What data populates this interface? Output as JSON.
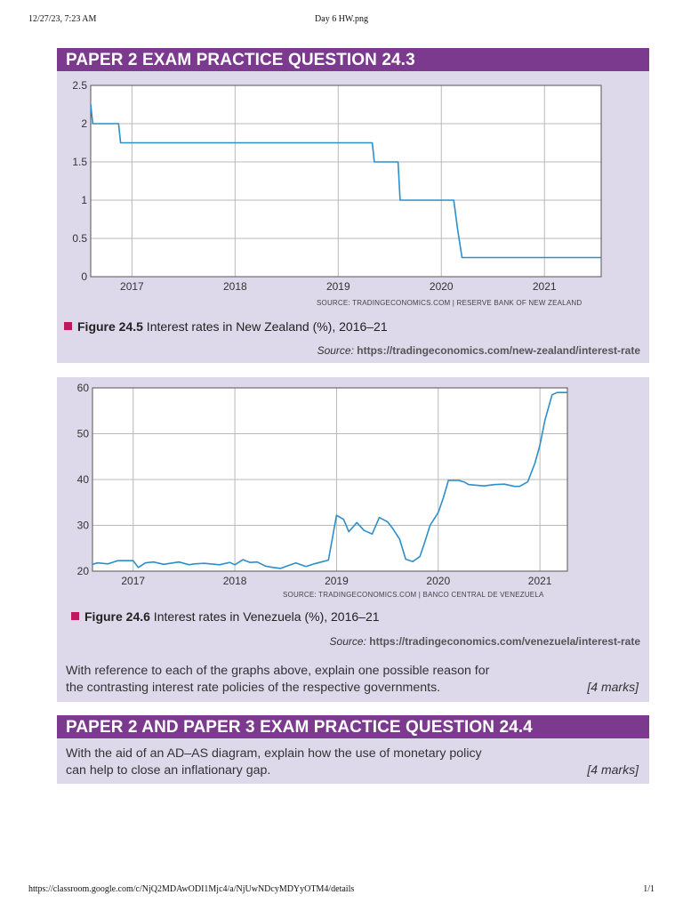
{
  "print_header": {
    "datetime": "12/27/23, 7:23 AM",
    "filename": "Day 6 HW.png"
  },
  "print_footer": {
    "url": "https://classroom.google.com/c/NjQ2MDAwODI1Mjc4/a/NjUwNDcyMDYyOTM4/details",
    "page": "1/1"
  },
  "colors": {
    "header_bg": "#7c3a8f",
    "card_bg": "#ddd8ea",
    "line": "#2c8fc9",
    "bullet": "#c0185c"
  },
  "question_24_3": {
    "title": "PAPER 2 EXAM PRACTICE QUESTION 24.3",
    "figure_1": {
      "source_line": "SOURCE: TRADINGECONOMICS.COM | RESERVE BANK OF NEW ZEALAND",
      "caption_label": "Figure 24.5",
      "caption_text": " Interest rates in New Zealand (%), 2016–21",
      "source_label": "Source:",
      "source_url": "https://tradingeconomics.com/new-zealand/interest-rate"
    },
    "figure_2": {
      "source_line": "SOURCE: TRADINGECONOMICS.COM | BANCO CENTRAL DE VENEZUELA",
      "caption_label": "Figure 24.6",
      "caption_text": " Interest rates in Venezuela (%), 2016–21",
      "source_label": "Source:",
      "source_url": "https://tradingeconomics.com/venezuela/interest-rate"
    },
    "question_line_1": "With reference to each of the graphs above, explain one possible reason for",
    "question_line_2": "the contrasting interest rate policies of the respective governments.",
    "marks": "[4 marks]"
  },
  "question_24_4": {
    "title": "PAPER 2 AND PAPER 3 EXAM PRACTICE QUESTION 24.4",
    "question_line_1": "With the aid of an AD–AS diagram, explain how the use of monetary policy",
    "question_line_2": "can help to close an inflationary gap.",
    "marks": "[4 marks]"
  },
  "chart_data": [
    {
      "type": "line",
      "title": "Interest rates in New Zealand (%), 2016–21",
      "xlabel": "",
      "ylabel": "",
      "xlim": [
        2016.6,
        2021.55
      ],
      "ylim": [
        0,
        2.5
      ],
      "yticks": [
        0,
        0.5,
        1,
        1.5,
        2,
        2.5
      ],
      "ytick_labels": [
        "0",
        "0.5",
        "1",
        "1.5",
        "2",
        "2.5"
      ],
      "xticks": [
        2017,
        2018,
        2019,
        2020,
        2021
      ],
      "xtick_labels": [
        "2017",
        "2018",
        "2019",
        "2020",
        "2021"
      ],
      "grid": true,
      "series": [
        {
          "name": "New Zealand",
          "x": [
            2016.6,
            2016.62,
            2016.87,
            2016.89,
            2019.33,
            2019.35,
            2019.58,
            2019.6,
            2020.12,
            2020.16,
            2020.2,
            2021.55
          ],
          "y": [
            2.25,
            2.0,
            2.0,
            1.75,
            1.75,
            1.5,
            1.5,
            1.0,
            1.0,
            0.6,
            0.25,
            0.25
          ]
        }
      ]
    },
    {
      "type": "line",
      "title": "Interest rates in Venezuela (%), 2016–21",
      "xlabel": "",
      "ylabel": "",
      "xlim": [
        2016.6,
        2021.27
      ],
      "ylim": [
        20,
        60
      ],
      "yticks": [
        20,
        30,
        40,
        50,
        60
      ],
      "ytick_labels": [
        "20",
        "30",
        "40",
        "50",
        "60"
      ],
      "xticks": [
        2017,
        2018,
        2019,
        2020,
        2021
      ],
      "xtick_labels": [
        "2017",
        "2018",
        "2019",
        "2020",
        "2021"
      ],
      "grid": true,
      "series": [
        {
          "name": "Venezuela",
          "x": [
            2016.6,
            2016.65,
            2016.75,
            2016.85,
            2016.95,
            2017.0,
            2017.05,
            2017.12,
            2017.2,
            2017.3,
            2017.45,
            2017.55,
            2017.6,
            2017.7,
            2017.85,
            2017.95,
            2018.0,
            2018.08,
            2018.15,
            2018.22,
            2018.3,
            2018.38,
            2018.45,
            2018.6,
            2018.7,
            2018.78,
            2018.85,
            2018.92,
            2019.0,
            2019.07,
            2019.12,
            2019.2,
            2019.27,
            2019.35,
            2019.42,
            2019.5,
            2019.55,
            2019.62,
            2019.68,
            2019.75,
            2019.82,
            2019.87,
            2019.92,
            2020.0,
            2020.05,
            2020.1,
            2020.15,
            2020.2,
            2020.25,
            2020.3,
            2020.45,
            2020.55,
            2020.65,
            2020.75,
            2020.8,
            2020.88,
            2020.95,
            2021.0,
            2021.05,
            2021.12,
            2021.17,
            2021.22,
            2021.27
          ],
          "y": [
            21.5,
            21.8,
            21.6,
            22.3,
            22.3,
            22.3,
            20.8,
            21.8,
            22.0,
            21.5,
            22.0,
            21.4,
            21.6,
            21.7,
            21.4,
            21.9,
            21.4,
            22.5,
            21.9,
            22.0,
            21.1,
            20.8,
            20.6,
            21.8,
            21.0,
            21.6,
            22.0,
            22.4,
            32.2,
            31.3,
            28.6,
            30.6,
            28.9,
            28.1,
            31.7,
            30.8,
            29.4,
            27.0,
            22.6,
            22.1,
            23.2,
            26.5,
            30.0,
            32.8,
            36.0,
            39.8,
            39.8,
            39.8,
            39.5,
            38.9,
            38.6,
            38.9,
            39.0,
            38.5,
            38.5,
            39.5,
            43.5,
            47.5,
            53.0,
            58.5,
            59.0,
            59.0,
            59.0
          ]
        }
      ]
    }
  ]
}
